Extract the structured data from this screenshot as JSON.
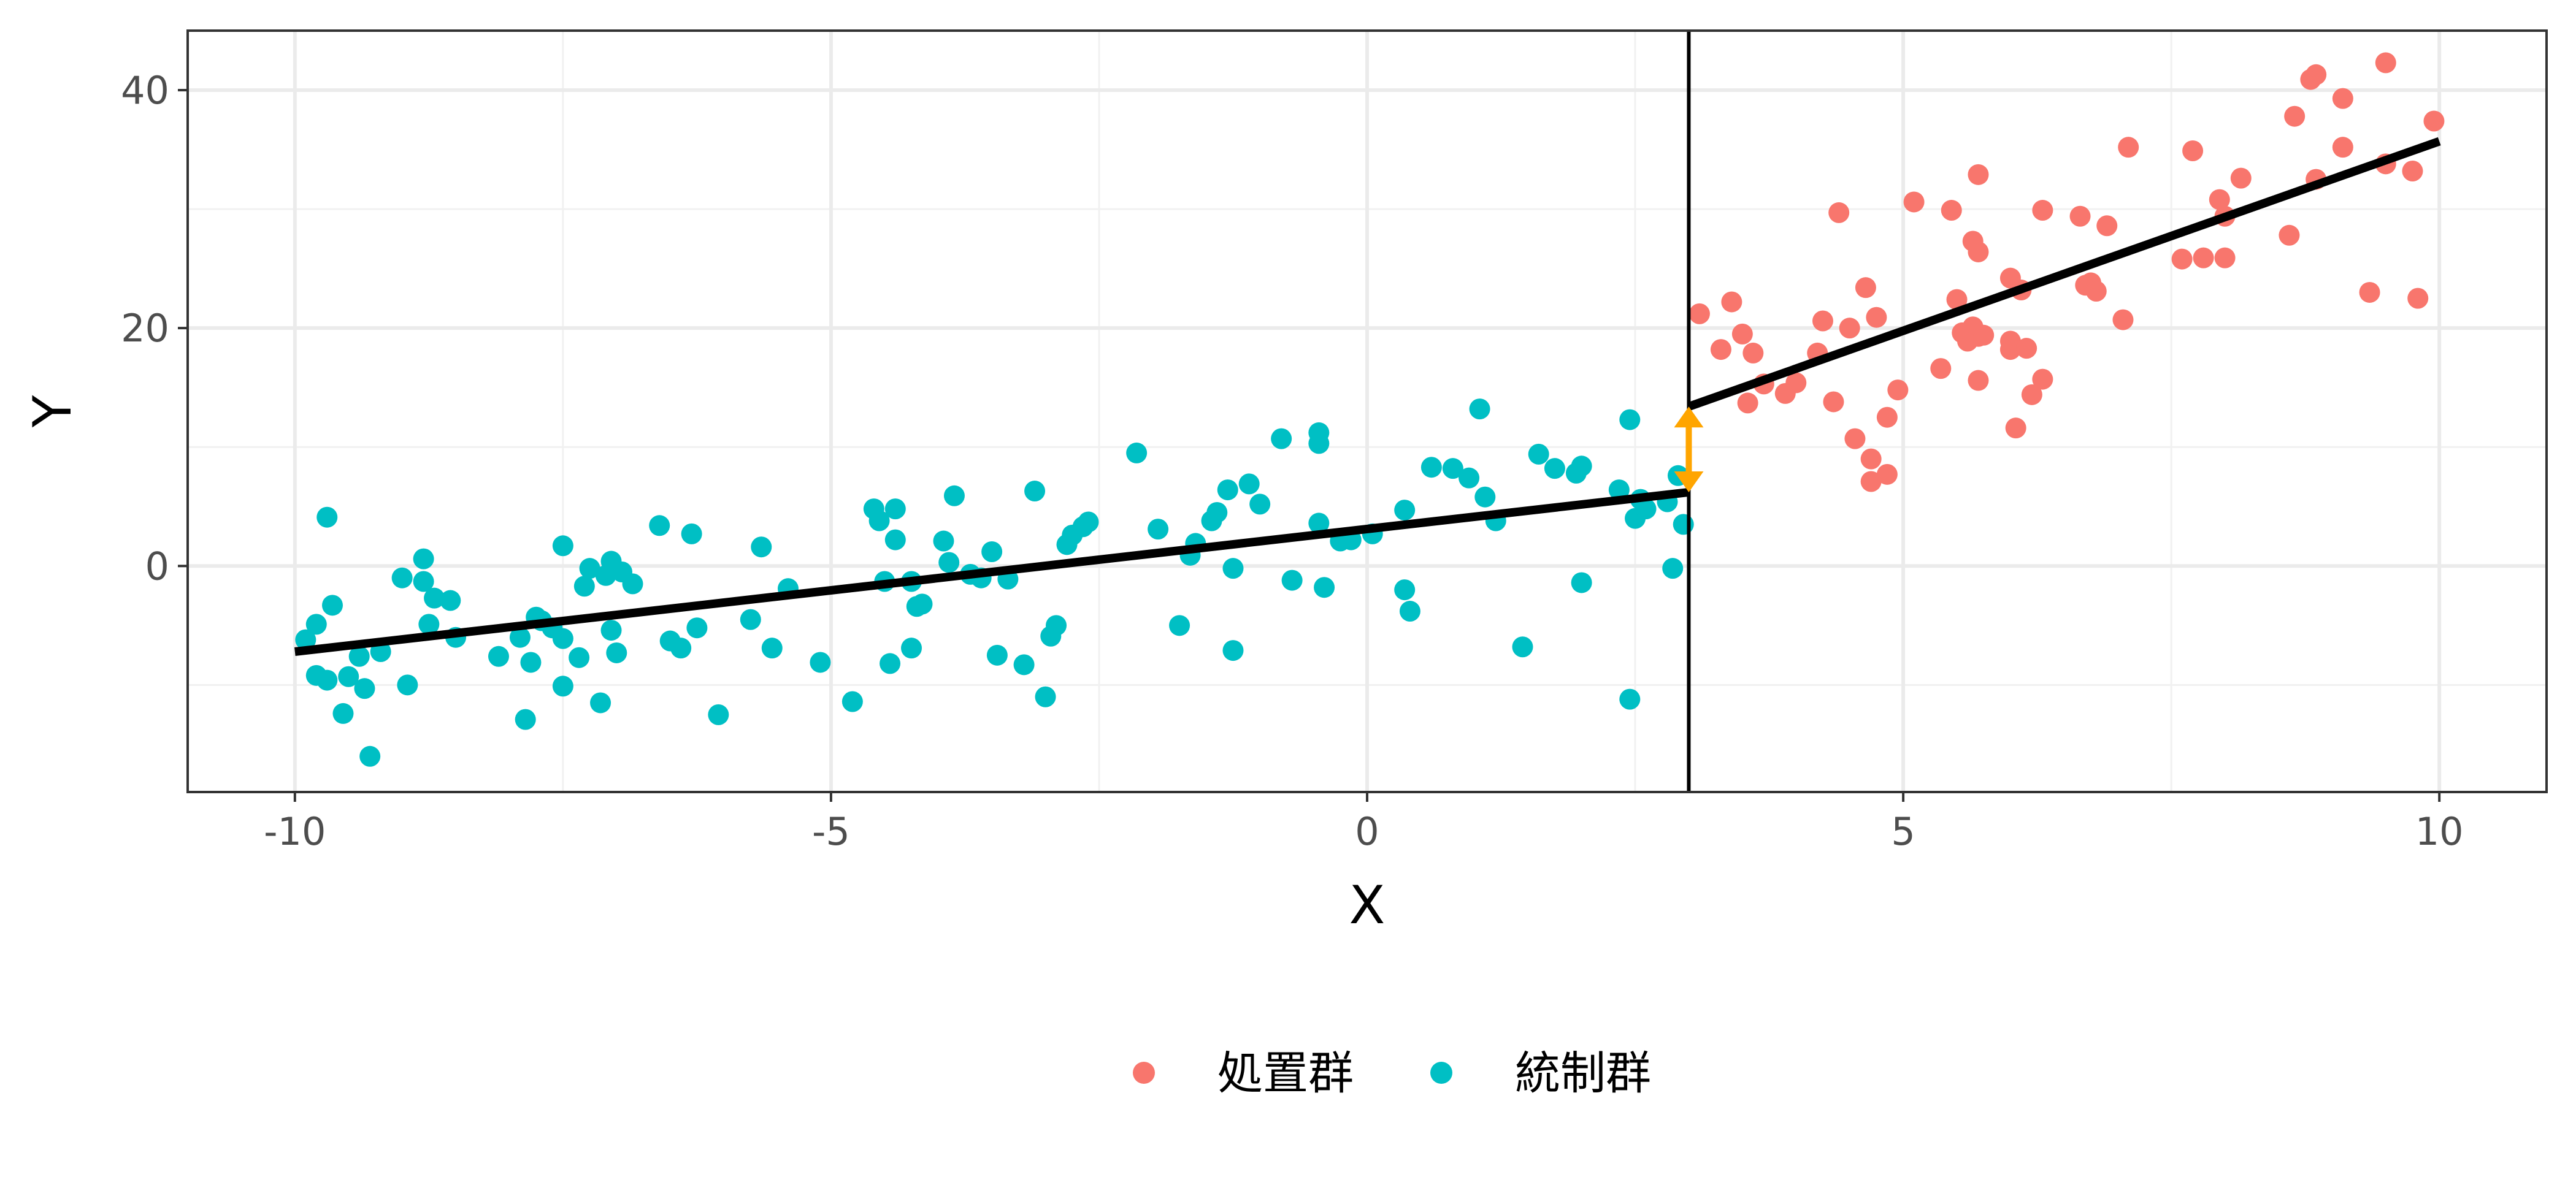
{
  "chart_data": {
    "type": "scatter",
    "xlabel": "X",
    "ylabel": "Y",
    "xlim": [
      -11,
      11
    ],
    "ylim": [
      -19,
      45
    ],
    "xticks": [
      -10,
      -5,
      0,
      5,
      10
    ],
    "xtick_labels": [
      "-10",
      "-5",
      "0",
      "5",
      "10"
    ],
    "yticks": [
      0,
      20,
      40
    ],
    "ytick_labels": [
      "0",
      "20",
      "40"
    ],
    "grid": true,
    "legend_position": "bottom",
    "cutoff": 3,
    "series": [
      {
        "name": "処置群",
        "color": "#F8766D",
        "points": [
          [
            3.1,
            21.2
          ],
          [
            3.3,
            18.2
          ],
          [
            3.4,
            22.2
          ],
          [
            3.5,
            19.5
          ],
          [
            3.55,
            13.7
          ],
          [
            3.6,
            17.9
          ],
          [
            3.7,
            15.3
          ],
          [
            3.9,
            14.5
          ],
          [
            4.0,
            15.4
          ],
          [
            4.2,
            17.9
          ],
          [
            4.25,
            20.6
          ],
          [
            4.35,
            13.8
          ],
          [
            4.4,
            29.7
          ],
          [
            4.5,
            20.0
          ],
          [
            4.55,
            10.7
          ],
          [
            4.65,
            23.4
          ],
          [
            4.7,
            7.1
          ],
          [
            4.7,
            9.0
          ],
          [
            4.75,
            20.9
          ],
          [
            4.85,
            7.7
          ],
          [
            4.85,
            12.5
          ],
          [
            4.95,
            14.8
          ],
          [
            5.1,
            30.6
          ],
          [
            5.35,
            16.6
          ],
          [
            5.45,
            29.9
          ],
          [
            5.5,
            22.4
          ],
          [
            5.55,
            19.6
          ],
          [
            5.6,
            18.9
          ],
          [
            5.65,
            20.1
          ],
          [
            5.65,
            27.3
          ],
          [
            5.7,
            19.3
          ],
          [
            5.7,
            26.4
          ],
          [
            5.7,
            32.9
          ],
          [
            5.7,
            15.6
          ],
          [
            5.75,
            19.4
          ],
          [
            6.0,
            18.9
          ],
          [
            6.0,
            18.2
          ],
          [
            6.0,
            24.2
          ],
          [
            6.05,
            11.6
          ],
          [
            6.1,
            23.2
          ],
          [
            6.15,
            18.3
          ],
          [
            6.2,
            14.4
          ],
          [
            6.3,
            15.7
          ],
          [
            6.3,
            29.9
          ],
          [
            6.65,
            29.4
          ],
          [
            6.7,
            23.6
          ],
          [
            6.75,
            23.8
          ],
          [
            6.9,
            28.6
          ],
          [
            6.8,
            23.1
          ],
          [
            7.05,
            20.7
          ],
          [
            7.1,
            35.2
          ],
          [
            7.6,
            25.8
          ],
          [
            7.7,
            34.9
          ],
          [
            7.8,
            25.9
          ],
          [
            7.95,
            30.8
          ],
          [
            8.0,
            25.9
          ],
          [
            8.0,
            29.4
          ],
          [
            8.15,
            32.6
          ],
          [
            8.6,
            27.8
          ],
          [
            8.65,
            37.8
          ],
          [
            8.8,
            40.9
          ],
          [
            8.85,
            41.3
          ],
          [
            8.85,
            32.5
          ],
          [
            9.1,
            35.2
          ],
          [
            9.1,
            39.3
          ],
          [
            9.35,
            23.0
          ],
          [
            9.5,
            33.8
          ],
          [
            9.5,
            42.3
          ],
          [
            9.75,
            33.2
          ],
          [
            9.8,
            22.5
          ],
          [
            9.95,
            37.4
          ]
        ]
      },
      {
        "name": "統制群",
        "color": "#00BFC4",
        "points": [
          [
            -9.9,
            -6.2
          ],
          [
            -9.8,
            -4.9
          ],
          [
            -9.8,
            -9.2
          ],
          [
            -9.7,
            4.1
          ],
          [
            -9.7,
            -9.6
          ],
          [
            -9.65,
            -3.3
          ],
          [
            -9.55,
            -12.4
          ],
          [
            -9.5,
            -9.3
          ],
          [
            -9.4,
            -7.6
          ],
          [
            -9.35,
            -10.3
          ],
          [
            -9.3,
            -16.0
          ],
          [
            -9.2,
            -7.2
          ],
          [
            -9.0,
            -1.0
          ],
          [
            -8.95,
            -10.0
          ],
          [
            -8.8,
            0.6
          ],
          [
            -8.8,
            -1.3
          ],
          [
            -8.75,
            -4.9
          ],
          [
            -8.7,
            -2.7
          ],
          [
            -8.55,
            -2.9
          ],
          [
            -8.5,
            -6.0
          ],
          [
            -8.1,
            -7.6
          ],
          [
            -7.9,
            -6.0
          ],
          [
            -7.85,
            -12.9
          ],
          [
            -7.8,
            -8.1
          ],
          [
            -7.75,
            -4.3
          ],
          [
            -7.7,
            -4.6
          ],
          [
            -7.6,
            -5.2
          ],
          [
            -7.5,
            -6.1
          ],
          [
            -7.5,
            -10.1
          ],
          [
            -7.5,
            1.7
          ],
          [
            -7.35,
            -7.7
          ],
          [
            -7.3,
            -1.7
          ],
          [
            -7.25,
            -0.2
          ],
          [
            -7.15,
            -11.5
          ],
          [
            -7.1,
            -0.8
          ],
          [
            -7.05,
            0.4
          ],
          [
            -7.05,
            -5.4
          ],
          [
            -7.0,
            -7.3
          ],
          [
            -6.95,
            -0.5
          ],
          [
            -6.85,
            -1.5
          ],
          [
            -6.6,
            3.4
          ],
          [
            -6.5,
            -6.3
          ],
          [
            -6.4,
            -6.9
          ],
          [
            -6.3,
            2.7
          ],
          [
            -6.25,
            -5.2
          ],
          [
            -6.05,
            -12.5
          ],
          [
            -5.75,
            -4.5
          ],
          [
            -5.65,
            1.6
          ],
          [
            -5.55,
            -6.9
          ],
          [
            -5.4,
            -1.9
          ],
          [
            -5.1,
            -8.1
          ],
          [
            -4.8,
            -11.4
          ],
          [
            -4.6,
            4.8
          ],
          [
            -4.55,
            3.8
          ],
          [
            -4.5,
            -1.3
          ],
          [
            -4.45,
            -8.2
          ],
          [
            -4.4,
            4.8
          ],
          [
            -4.4,
            2.2
          ],
          [
            -4.25,
            -1.3
          ],
          [
            -4.25,
            -6.9
          ],
          [
            -4.2,
            -3.4
          ],
          [
            -4.15,
            -3.2
          ],
          [
            -3.95,
            2.1
          ],
          [
            -3.9,
            0.3
          ],
          [
            -3.85,
            5.9
          ],
          [
            -3.7,
            -0.7
          ],
          [
            -3.6,
            -1.0
          ],
          [
            -3.5,
            1.2
          ],
          [
            -3.45,
            -7.5
          ],
          [
            -3.35,
            -1.1
          ],
          [
            -3.2,
            -8.3
          ],
          [
            -3.1,
            6.3
          ],
          [
            -3.0,
            -11.0
          ],
          [
            -2.95,
            -5.9
          ],
          [
            -2.9,
            -5.0
          ],
          [
            -2.8,
            1.8
          ],
          [
            -2.75,
            2.6
          ],
          [
            -2.65,
            3.3
          ],
          [
            -2.6,
            3.7
          ],
          [
            -2.15,
            9.5
          ],
          [
            -1.95,
            3.1
          ],
          [
            -1.75,
            -5.0
          ],
          [
            -1.65,
            0.9
          ],
          [
            -1.6,
            1.9
          ],
          [
            -1.45,
            3.8
          ],
          [
            -1.4,
            4.5
          ],
          [
            -1.3,
            6.4
          ],
          [
            -1.25,
            -0.2
          ],
          [
            -1.25,
            -7.1
          ],
          [
            -1.1,
            6.9
          ],
          [
            -1.0,
            5.2
          ],
          [
            -0.8,
            10.7
          ],
          [
            -0.7,
            -1.2
          ],
          [
            -0.45,
            11.2
          ],
          [
            -0.45,
            10.3
          ],
          [
            -0.45,
            3.6
          ],
          [
            -0.4,
            -1.8
          ],
          [
            -0.25,
            2.1
          ],
          [
            -0.15,
            2.2
          ],
          [
            0.05,
            2.7
          ],
          [
            0.35,
            -2.0
          ],
          [
            0.4,
            -3.8
          ],
          [
            0.35,
            4.7
          ],
          [
            0.6,
            8.3
          ],
          [
            0.8,
            8.2
          ],
          [
            0.95,
            7.4
          ],
          [
            1.05,
            13.2
          ],
          [
            1.1,
            5.8
          ],
          [
            1.2,
            3.8
          ],
          [
            1.45,
            -6.8
          ],
          [
            1.6,
            9.4
          ],
          [
            1.75,
            8.2
          ],
          [
            1.95,
            7.8
          ],
          [
            2.0,
            8.4
          ],
          [
            2.0,
            -1.4
          ],
          [
            2.35,
            6.4
          ],
          [
            2.45,
            12.3
          ],
          [
            2.45,
            -11.2
          ],
          [
            2.5,
            4.0
          ],
          [
            2.55,
            5.6
          ],
          [
            2.6,
            4.8
          ],
          [
            2.8,
            5.4
          ],
          [
            2.85,
            -0.2
          ],
          [
            2.9,
            7.6
          ],
          [
            2.95,
            3.5
          ]
        ]
      }
    ],
    "fit_lines": [
      {
        "from": [
          -10,
          -7.2
        ],
        "to": [
          3,
          6.2
        ]
      },
      {
        "from": [
          3,
          13.4
        ],
        "to": [
          10,
          35.7
        ]
      }
    ],
    "jump_arrow": {
      "x": 3,
      "from": 6.2,
      "to": 13.4,
      "color": "#FFA500"
    }
  }
}
